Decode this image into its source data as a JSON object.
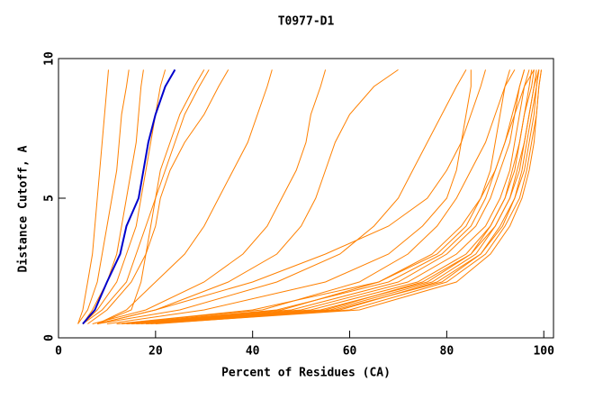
{
  "chart_data": {
    "type": "line",
    "title": "T0977-D1",
    "x_label": "Percent of Residues (CA)",
    "y_label": "Distance Cutoff, A",
    "xlim": [
      0,
      102
    ],
    "ylim": [
      0,
      10
    ],
    "xticks": [
      0,
      20,
      40,
      60,
      80,
      100
    ],
    "yticks": [
      0,
      5,
      10
    ],
    "y": [
      0.5,
      1,
      2,
      3,
      4,
      5,
      6,
      7,
      8,
      9,
      9.6
    ],
    "series": [
      {
        "color": "#ff8000",
        "x": [
          4,
          5,
          6,
          7,
          7.5,
          8,
          8.5,
          9,
          9.5,
          10,
          10.3
        ]
      },
      {
        "color": "#ff8000",
        "x": [
          4,
          6,
          8,
          9,
          10,
          11,
          12,
          12.5,
          13,
          14,
          14.5
        ]
      },
      {
        "color": "#ff8000",
        "x": [
          5,
          7,
          10,
          12,
          13,
          14,
          15,
          16,
          16.5,
          17,
          17.5
        ]
      },
      {
        "color": "#ff8000",
        "x": [
          5,
          8,
          12,
          14,
          16,
          17,
          18,
          19,
          20,
          21,
          22
        ]
      },
      {
        "color": "#ff8000",
        "x": [
          5,
          9,
          14,
          16,
          18,
          20,
          22,
          24,
          26,
          29,
          31
        ]
      },
      {
        "color": "#ff8000",
        "x": [
          6,
          10,
          15,
          18,
          20,
          21,
          23,
          26,
          30,
          33,
          35
        ]
      },
      {
        "color": "#ff8000",
        "x": [
          8,
          14,
          20,
          26,
          30,
          33,
          36,
          39,
          41,
          43,
          44
        ]
      },
      {
        "color": "#ff8000",
        "x": [
          8,
          15,
          17,
          18,
          19,
          20,
          21,
          23,
          25,
          28,
          30
        ]
      },
      {
        "color": "#ff8000",
        "x": [
          7,
          18,
          30,
          38,
          43,
          46,
          49,
          51,
          52,
          54,
          55
        ]
      },
      {
        "color": "#ff8000",
        "x": [
          8,
          20,
          35,
          45,
          50,
          53,
          55,
          57,
          60,
          65,
          70
        ]
      },
      {
        "color": "#ff8000",
        "x": [
          8,
          25,
          45,
          58,
          65,
          70,
          73,
          76,
          79,
          82,
          84
        ]
      },
      {
        "color": "#ff8000",
        "x": [
          10,
          30,
          55,
          68,
          75,
          80,
          82,
          83,
          84,
          85,
          85
        ]
      },
      {
        "color": "#ff8000",
        "x": [
          8,
          20,
          40,
          55,
          68,
          76,
          80,
          83,
          85,
          87,
          88
        ]
      },
      {
        "color": "#ff8000",
        "x": [
          12,
          40,
          66,
          78,
          84,
          87,
          89,
          90,
          91,
          92,
          93
        ]
      },
      {
        "color": "#ff8000",
        "x": [
          15,
          50,
          72,
          82,
          88,
          91,
          93,
          94,
          95,
          96,
          97
        ]
      },
      {
        "color": "#ff8000",
        "x": [
          14,
          48,
          70,
          80,
          86,
          89,
          91,
          93,
          94,
          95,
          96
        ]
      },
      {
        "color": "#ff8000",
        "x": [
          16,
          55,
          75,
          85,
          90,
          93,
          95,
          96,
          97,
          98,
          98.5
        ]
      },
      {
        "color": "#ff8000",
        "x": [
          18,
          58,
          78,
          87,
          91,
          94,
          96,
          97,
          98,
          98.5,
          99
        ]
      },
      {
        "color": "#ff8000",
        "x": [
          20,
          60,
          80,
          88,
          92,
          95,
          96.5,
          97.5,
          98.5,
          99,
          99.5
        ]
      },
      {
        "color": "#ff8000",
        "x": [
          15,
          52,
          74,
          84,
          89,
          92,
          94,
          95,
          96,
          97,
          97.5
        ]
      },
      {
        "color": "#ff8000",
        "x": [
          13,
          45,
          68,
          79,
          85,
          88,
          90,
          92,
          94,
          96,
          98
        ]
      },
      {
        "color": "#ff8000",
        "x": [
          17,
          56,
          77,
          86,
          90,
          93,
          94.5,
          96,
          97,
          98,
          99
        ]
      },
      {
        "color": "#ff8000",
        "x": [
          19,
          62,
          82,
          89,
          93,
          95.5,
          97,
          98,
          98.5,
          99,
          99.5
        ]
      },
      {
        "color": "#ff8000",
        "x": [
          14,
          46,
          66,
          77,
          83,
          87,
          90,
          92,
          93.5,
          95,
          96
        ]
      },
      {
        "color": "#ff8000",
        "x": [
          12,
          42,
          62,
          72,
          78,
          82,
          85,
          88,
          90,
          92,
          94
        ]
      },
      {
        "color": "#ff8000",
        "x": [
          16,
          54,
          76,
          85,
          89,
          92,
          93.5,
          95,
          96,
          97.5,
          98
        ]
      },
      {
        "color": "#ff8000",
        "x": [
          18,
          57,
          79,
          87,
          91.5,
          94,
          95.5,
          96.5,
          97.5,
          98.5,
          99
        ]
      },
      {
        "color": "#0000cc",
        "x": [
          5,
          7.5,
          10,
          12.7,
          14,
          16.5,
          17.5,
          18.5,
          20,
          22,
          24
        ]
      }
    ]
  }
}
